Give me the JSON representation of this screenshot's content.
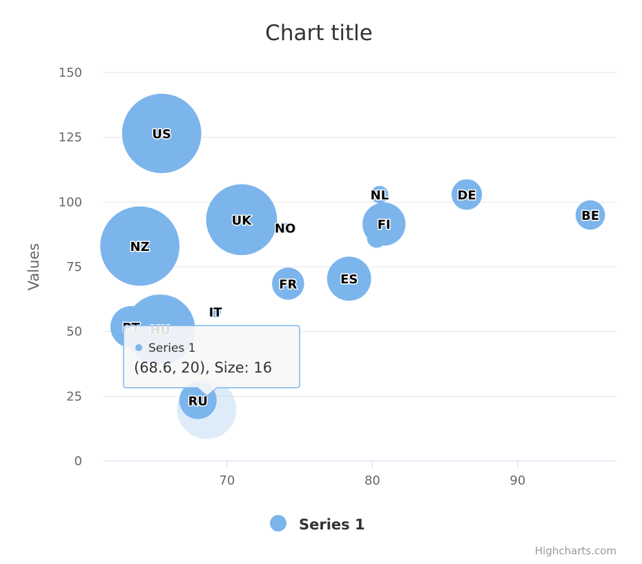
{
  "chart_data": {
    "type": "bubble",
    "title": "Chart title",
    "xlabel": "",
    "ylabel": "Values",
    "xlim": [
      61.5,
      96.8
    ],
    "ylim": [
      0,
      150
    ],
    "xticks": [
      70,
      80,
      90
    ],
    "yticks": [
      0,
      25,
      50,
      75,
      100,
      125,
      150
    ],
    "grid": "horizontal",
    "legend_position": "bottom",
    "series": [
      {
        "name": "Series 1",
        "color": "#7cb5ec",
        "points": [
          {
            "label": "US",
            "x": 65.5,
            "y": 126.5,
            "size": 13.8
          },
          {
            "label": "NZ",
            "x": 64,
            "y": 83,
            "size": 13.8
          },
          {
            "label": "HU",
            "x": 65.4,
            "y": 50.8,
            "size": 12.0
          },
          {
            "label": "PT",
            "x": 63.4,
            "y": 51.8,
            "size": 6.6
          },
          {
            "label": "UK",
            "x": 71,
            "y": 93.2,
            "size": 12.2
          },
          {
            "label": "NO",
            "x": 74,
            "y": 90.1,
            "size": 0.5
          },
          {
            "label": "FR",
            "x": 74.2,
            "y": 68.5,
            "size": 4.8
          },
          {
            "label": "IT",
            "x": 69.2,
            "y": 57.6,
            "size": 0.8
          },
          {
            "label": "ES",
            "x": 78.4,
            "y": 70.4,
            "size": 7.1
          },
          {
            "label": "NL",
            "x": 80.5,
            "y": 102.9,
            "size": 2.0
          },
          {
            "label": "FI",
            "x": 80.3,
            "y": 86.1,
            "size": 2.4
          },
          {
            "label": "FI",
            "x": 80.8,
            "y": 91.5,
            "size": 6.9
          },
          {
            "label": "DE",
            "x": 86.5,
            "y": 102.9,
            "size": 4.5
          },
          {
            "label": "BE",
            "x": 95,
            "y": 95,
            "size": 4.3
          },
          {
            "label": "RU",
            "x": 68,
            "y": 23.4,
            "size": 5.8
          }
        ]
      }
    ],
    "highlighted_point": {
      "x": 68.6,
      "y": 20,
      "size": 16
    },
    "tooltip": {
      "series_name": "Series 1",
      "text": "(68.6, 20), Size: 16"
    },
    "credits": "Highcharts.com"
  }
}
